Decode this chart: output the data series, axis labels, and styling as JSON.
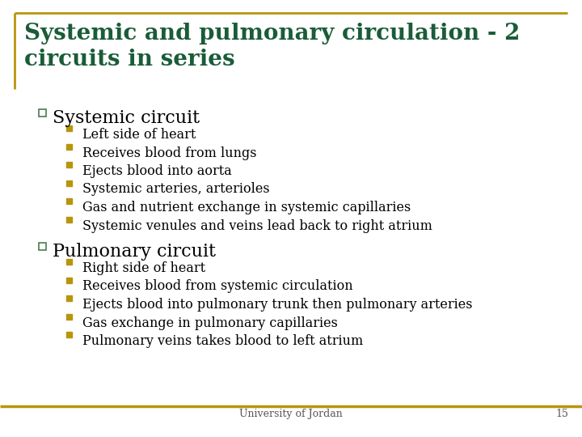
{
  "title": "Systemic and pulmonary circulation - 2\ncircuits in series",
  "title_color": "#1a5c38",
  "title_fontsize": 20,
  "background_color": "#ffffff",
  "border_color": "#b8960c",
  "section1_header": "Systemic circuit",
  "section1_color": "#000000",
  "section1_items": [
    "Left side of heart",
    "Receives blood from lungs",
    "Ejects blood into aorta",
    "Systemic arteries, arterioles",
    "Gas and nutrient exchange in systemic capillaries",
    "Systemic venules and veins lead back to right atrium"
  ],
  "section2_header": "Pulmonary circuit",
  "section2_color": "#000000",
  "section2_items": [
    "Right side of heart",
    "Receives blood from systemic circulation",
    "Ejects blood into pulmonary trunk then pulmonary arteries",
    "Gas exchange in pulmonary capillaries",
    "Pulmonary veins takes blood to left atrium"
  ],
  "item_color": "#000000",
  "item_fontsize": 11.5,
  "header_fontsize": 16,
  "section_bullet_color": "#4a7c4e",
  "item_bullet_color": "#b8960c",
  "footer_text": "University of Jordan",
  "footer_page": "15",
  "footer_fontsize": 9
}
